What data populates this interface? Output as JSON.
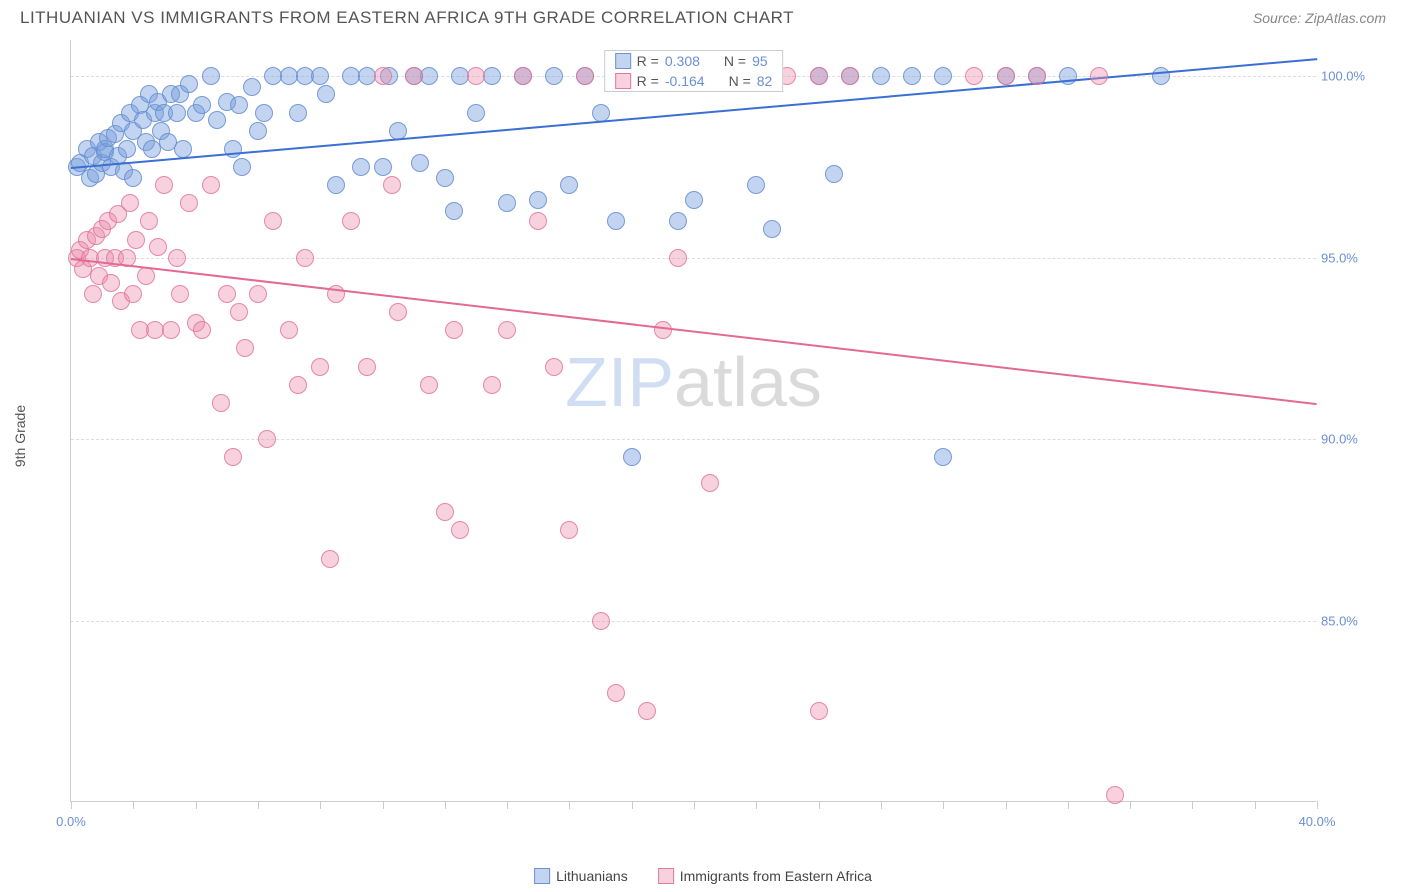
{
  "header": {
    "title": "LITHUANIAN VS IMMIGRANTS FROM EASTERN AFRICA 9TH GRADE CORRELATION CHART",
    "source": "Source: ZipAtlas.com"
  },
  "chart": {
    "type": "scatter",
    "ylabel": "9th Grade",
    "xlim": [
      0,
      40
    ],
    "ylim": [
      80,
      101
    ],
    "xtick_step": 2,
    "xtick_labels": [
      {
        "x": 0,
        "label": "0.0%"
      },
      {
        "x": 40,
        "label": "40.0%"
      }
    ],
    "ytick_labels": [
      {
        "y": 85,
        "label": "85.0%"
      },
      {
        "y": 90,
        "label": "90.0%"
      },
      {
        "y": 95,
        "label": "95.0%"
      },
      {
        "y": 100,
        "label": "100.0%"
      }
    ],
    "grid_color": "#dddddd",
    "axis_color": "#cccccc",
    "background_color": "#ffffff",
    "tick_label_color": "#6b8fd4",
    "series": [
      {
        "name": "Lithuanians",
        "color_fill": "rgba(120,160,220,0.45)",
        "color_stroke": "rgba(100,140,210,0.8)",
        "trend_color": "#3b6fd4",
        "trend": {
          "x1": 0,
          "y1": 97.5,
          "x2": 40,
          "y2": 100.5
        },
        "r": 0.308,
        "n": 95,
        "marker_radius": 9,
        "points": [
          [
            0.2,
            97.5
          ],
          [
            0.3,
            97.6
          ],
          [
            0.5,
            98.0
          ],
          [
            0.6,
            97.2
          ],
          [
            0.7,
            97.8
          ],
          [
            0.8,
            97.3
          ],
          [
            0.9,
            98.2
          ],
          [
            1.0,
            97.6
          ],
          [
            1.1,
            97.9
          ],
          [
            1.1,
            98.0
          ],
          [
            1.2,
            98.3
          ],
          [
            1.3,
            97.5
          ],
          [
            1.4,
            98.4
          ],
          [
            1.5,
            97.8
          ],
          [
            1.6,
            98.7
          ],
          [
            1.7,
            97.4
          ],
          [
            1.8,
            98.0
          ],
          [
            1.9,
            99.0
          ],
          [
            2.0,
            98.5
          ],
          [
            2.0,
            97.2
          ],
          [
            2.2,
            99.2
          ],
          [
            2.3,
            98.8
          ],
          [
            2.4,
            98.2
          ],
          [
            2.5,
            99.5
          ],
          [
            2.6,
            98.0
          ],
          [
            2.7,
            99.0
          ],
          [
            2.8,
            99.3
          ],
          [
            2.9,
            98.5
          ],
          [
            3.0,
            99.0
          ],
          [
            3.1,
            98.2
          ],
          [
            3.2,
            99.5
          ],
          [
            3.4,
            99.0
          ],
          [
            3.5,
            99.5
          ],
          [
            3.6,
            98.0
          ],
          [
            3.8,
            99.8
          ],
          [
            4.0,
            99.0
          ],
          [
            4.2,
            99.2
          ],
          [
            4.5,
            100.0
          ],
          [
            4.7,
            98.8
          ],
          [
            5.0,
            99.3
          ],
          [
            5.2,
            98.0
          ],
          [
            5.4,
            99.2
          ],
          [
            5.5,
            97.5
          ],
          [
            5.8,
            99.7
          ],
          [
            6.0,
            98.5
          ],
          [
            6.2,
            99.0
          ],
          [
            6.5,
            100.0
          ],
          [
            7.0,
            100.0
          ],
          [
            7.3,
            99.0
          ],
          [
            7.5,
            100.0
          ],
          [
            8.0,
            100.0
          ],
          [
            8.2,
            99.5
          ],
          [
            8.5,
            97.0
          ],
          [
            9.0,
            100.0
          ],
          [
            9.3,
            97.5
          ],
          [
            9.5,
            100.0
          ],
          [
            10.0,
            97.5
          ],
          [
            10.2,
            100.0
          ],
          [
            10.5,
            98.5
          ],
          [
            11.0,
            100.0
          ],
          [
            11.2,
            97.6
          ],
          [
            11.5,
            100.0
          ],
          [
            12.0,
            97.2
          ],
          [
            12.3,
            96.3
          ],
          [
            12.5,
            100.0
          ],
          [
            13.0,
            99.0
          ],
          [
            13.5,
            100.0
          ],
          [
            14.0,
            96.5
          ],
          [
            14.5,
            100.0
          ],
          [
            15.0,
            96.6
          ],
          [
            15.5,
            100.0
          ],
          [
            16.0,
            97.0
          ],
          [
            16.5,
            100.0
          ],
          [
            17.0,
            99.0
          ],
          [
            17.5,
            96.0
          ],
          [
            18.0,
            100.0
          ],
          [
            19.0,
            100.0
          ],
          [
            19.5,
            96.0
          ],
          [
            20.0,
            96.6
          ],
          [
            20.5,
            100.0
          ],
          [
            21.0,
            100.0
          ],
          [
            22.0,
            97.0
          ],
          [
            22.5,
            95.8
          ],
          [
            24.0,
            100.0
          ],
          [
            24.5,
            97.3
          ],
          [
            25.0,
            100.0
          ],
          [
            26.0,
            100.0
          ],
          [
            27.0,
            100.0
          ],
          [
            28.0,
            100.0
          ],
          [
            30.0,
            100.0
          ],
          [
            31.0,
            100.0
          ],
          [
            32.0,
            100.0
          ],
          [
            35.0,
            100.0
          ],
          [
            18.0,
            89.5
          ],
          [
            28.0,
            89.5
          ]
        ]
      },
      {
        "name": "Immigrants from Eastern Africa",
        "color_fill": "rgba(235,140,170,0.40)",
        "color_stroke": "rgba(225,110,150,0.75)",
        "trend_color": "#e26a93",
        "trend": {
          "x1": 0,
          "y1": 95.0,
          "x2": 40,
          "y2": 91.0
        },
        "r": -0.164,
        "n": 82,
        "marker_radius": 9,
        "points": [
          [
            0.2,
            95.0
          ],
          [
            0.3,
            95.2
          ],
          [
            0.4,
            94.7
          ],
          [
            0.5,
            95.5
          ],
          [
            0.6,
            95.0
          ],
          [
            0.7,
            94.0
          ],
          [
            0.8,
            95.6
          ],
          [
            0.9,
            94.5
          ],
          [
            1.0,
            95.8
          ],
          [
            1.1,
            95.0
          ],
          [
            1.2,
            96.0
          ],
          [
            1.3,
            94.3
          ],
          [
            1.4,
            95.0
          ],
          [
            1.5,
            96.2
          ],
          [
            1.6,
            93.8
          ],
          [
            1.8,
            95.0
          ],
          [
            1.9,
            96.5
          ],
          [
            2.0,
            94.0
          ],
          [
            2.1,
            95.5
          ],
          [
            2.2,
            93.0
          ],
          [
            2.4,
            94.5
          ],
          [
            2.5,
            96.0
          ],
          [
            2.7,
            93.0
          ],
          [
            2.8,
            95.3
          ],
          [
            3.0,
            97.0
          ],
          [
            3.2,
            93.0
          ],
          [
            3.4,
            95.0
          ],
          [
            3.5,
            94.0
          ],
          [
            3.8,
            96.5
          ],
          [
            4.0,
            93.2
          ],
          [
            4.2,
            93.0
          ],
          [
            4.5,
            97.0
          ],
          [
            4.8,
            91.0
          ],
          [
            5.0,
            94.0
          ],
          [
            5.2,
            89.5
          ],
          [
            5.4,
            93.5
          ],
          [
            5.6,
            92.5
          ],
          [
            6.0,
            94.0
          ],
          [
            6.3,
            90.0
          ],
          [
            6.5,
            96.0
          ],
          [
            7.0,
            93.0
          ],
          [
            7.3,
            91.5
          ],
          [
            7.5,
            95.0
          ],
          [
            8.0,
            92.0
          ],
          [
            8.3,
            86.7
          ],
          [
            8.5,
            94.0
          ],
          [
            9.0,
            96.0
          ],
          [
            9.5,
            92.0
          ],
          [
            10.0,
            100.0
          ],
          [
            10.3,
            97.0
          ],
          [
            10.5,
            93.5
          ],
          [
            11.0,
            100.0
          ],
          [
            11.5,
            91.5
          ],
          [
            12.0,
            88.0
          ],
          [
            12.3,
            93.0
          ],
          [
            12.5,
            87.5
          ],
          [
            13.0,
            100.0
          ],
          [
            13.5,
            91.5
          ],
          [
            14.0,
            93.0
          ],
          [
            14.5,
            100.0
          ],
          [
            15.0,
            96.0
          ],
          [
            15.5,
            92.0
          ],
          [
            16.0,
            87.5
          ],
          [
            16.5,
            100.0
          ],
          [
            17.0,
            85.0
          ],
          [
            17.5,
            83.0
          ],
          [
            18.0,
            100.0
          ],
          [
            18.5,
            82.5
          ],
          [
            19.0,
            93.0
          ],
          [
            20.0,
            100.0
          ],
          [
            20.5,
            88.8
          ],
          [
            21.0,
            100.0
          ],
          [
            23.0,
            100.0
          ],
          [
            24.0,
            82.5
          ],
          [
            25.0,
            100.0
          ],
          [
            29.0,
            100.0
          ],
          [
            30.0,
            100.0
          ],
          [
            31.0,
            100.0
          ],
          [
            33.0,
            100.0
          ],
          [
            33.5,
            80.2
          ],
          [
            24.0,
            100.0
          ],
          [
            19.5,
            95.0
          ]
        ]
      }
    ],
    "legend_stats": {
      "rows": [
        {
          "swatch_fill": "rgba(120,160,220,0.45)",
          "swatch_stroke": "rgba(100,140,210,0.9)",
          "r": "0.308",
          "n": "95"
        },
        {
          "swatch_fill": "rgba(235,140,170,0.40)",
          "swatch_stroke": "rgba(225,110,150,0.9)",
          "r": "-0.164",
          "n": "82"
        }
      ],
      "r_label": "R =",
      "n_label": "N ="
    },
    "legend_bottom": [
      {
        "swatch_fill": "rgba(120,160,220,0.45)",
        "swatch_stroke": "rgba(100,140,210,0.9)",
        "label": "Lithuanians"
      },
      {
        "swatch_fill": "rgba(235,140,170,0.40)",
        "swatch_stroke": "rgba(225,110,150,0.9)",
        "label": "Immigrants from Eastern Africa"
      }
    ],
    "watermark": {
      "part1": "ZIP",
      "part2": "atlas",
      "color1": "rgba(120,160,220,0.35)",
      "color2": "rgba(150,150,150,0.35)"
    }
  }
}
